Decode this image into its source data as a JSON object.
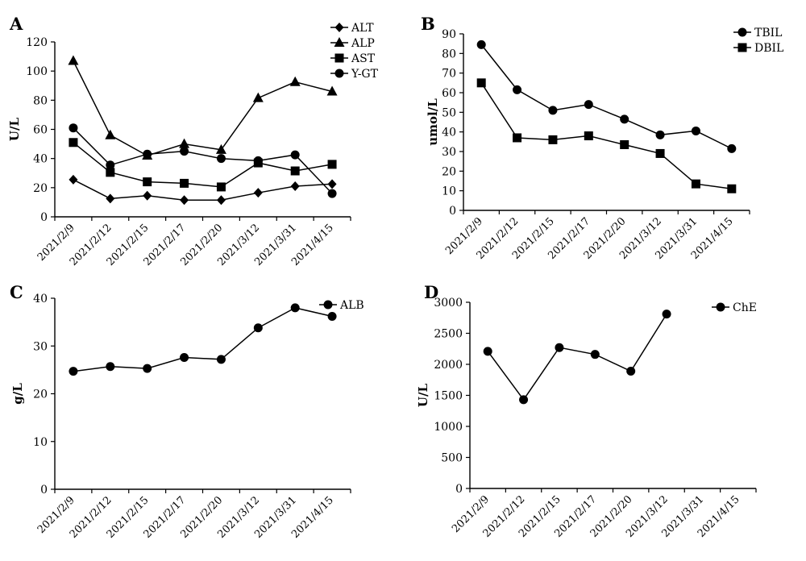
{
  "chart_data": [
    {
      "panel": "A",
      "type": "line",
      "ylabel": "U/L",
      "xlabel": "",
      "ylim": [
        0,
        120
      ],
      "yticks": [
        0,
        20,
        40,
        60,
        80,
        100,
        120
      ],
      "categories": [
        "2021/2/9",
        "2021/2/12",
        "2021/2/15",
        "2021/2/17",
        "2021/2/20",
        "2021/3/12",
        "2021/3/31",
        "2021/4/15"
      ],
      "legend_position": "top-right",
      "series": [
        {
          "name": "ALT",
          "marker": "diamond",
          "values": [
            25.5,
            12.5,
            14.5,
            11.5,
            11.5,
            16.5,
            21,
            22.5
          ]
        },
        {
          "name": "ALP",
          "marker": "triangle",
          "values": [
            107,
            56,
            42,
            50,
            46,
            81.5,
            92.5,
            86
          ]
        },
        {
          "name": "AST",
          "marker": "square",
          "values": [
            51,
            30.5,
            24,
            23,
            20.5,
            37,
            31.5,
            36
          ]
        },
        {
          "name": "Y-GT",
          "marker": "circle",
          "values": [
            61,
            35.5,
            43,
            45,
            40,
            38.5,
            42.5,
            16
          ]
        }
      ]
    },
    {
      "panel": "B",
      "type": "line",
      "ylabel": "umol/L",
      "xlabel": "",
      "ylim": [
        0,
        90
      ],
      "yticks": [
        0,
        10,
        20,
        30,
        40,
        50,
        60,
        70,
        80,
        90
      ],
      "categories": [
        "2021/2/9",
        "2021/2/12",
        "2021/2/15",
        "2021/2/17",
        "2021/2/20",
        "2021/3/12",
        "2021/3/31",
        "2021/4/15"
      ],
      "legend_position": "top-right",
      "series": [
        {
          "name": "TBIL",
          "marker": "circle",
          "values": [
            84.5,
            61.5,
            51,
            54,
            46.5,
            38.5,
            40.5,
            31.5
          ]
        },
        {
          "name": "DBIL",
          "marker": "square",
          "values": [
            65,
            37,
            36,
            38,
            33.5,
            29,
            13.5,
            11
          ]
        }
      ]
    },
    {
      "panel": "C",
      "type": "line",
      "ylabel": "g/L",
      "xlabel": "",
      "ylim": [
        0,
        40
      ],
      "yticks": [
        0,
        10,
        20,
        30,
        40
      ],
      "categories": [
        "2021/2/9",
        "2021/2/12",
        "2021/2/15",
        "2021/2/17",
        "2021/2/20",
        "2021/3/12",
        "2021/3/31",
        "2021/4/15"
      ],
      "legend_position": "top-right",
      "series": [
        {
          "name": "ALB",
          "marker": "circle",
          "values": [
            24.7,
            25.7,
            25.3,
            27.6,
            27.2,
            33.8,
            38,
            36.2
          ]
        }
      ]
    },
    {
      "panel": "D",
      "type": "line",
      "ylabel": "U/L",
      "xlabel": "",
      "ylim": [
        0,
        3000
      ],
      "yticks": [
        0,
        500,
        1000,
        1500,
        2000,
        2500,
        3000
      ],
      "categories": [
        "2021/2/9",
        "2021/2/12",
        "2021/2/15",
        "2021/2/17",
        "2021/2/20",
        "2021/3/12",
        "2021/3/31",
        "2021/4/15"
      ],
      "legend_position": "top-right",
      "series": [
        {
          "name": "ChE",
          "marker": "circle",
          "values": [
            2210,
            1430,
            2270,
            2160,
            1890,
            2810,
            null,
            null
          ]
        }
      ]
    }
  ]
}
